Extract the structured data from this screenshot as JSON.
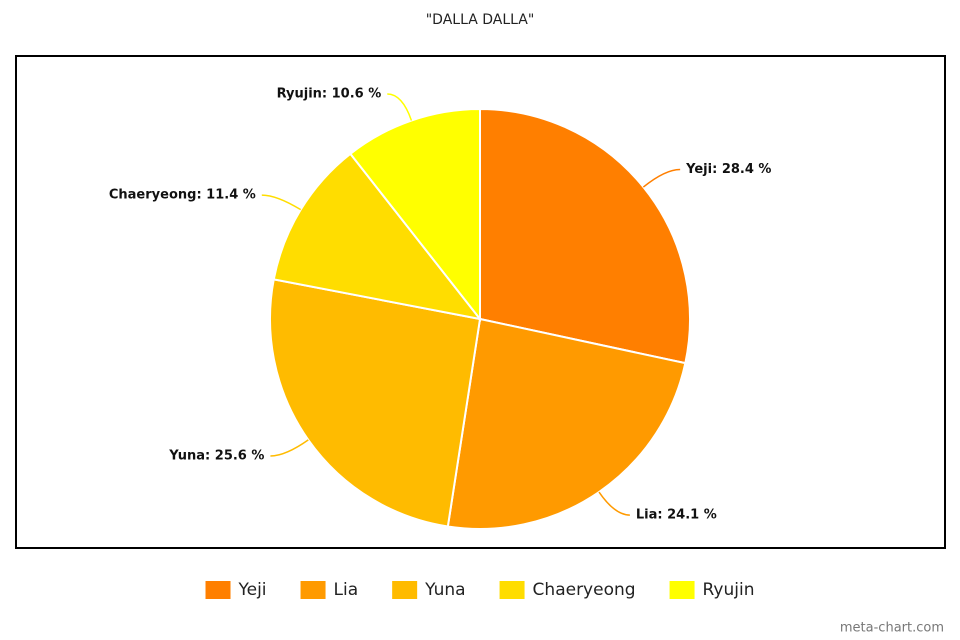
{
  "chart_data": {
    "type": "pie",
    "title": "\"DALLA DALLA\"",
    "categories": [
      "Yeji",
      "Lia",
      "Yuna",
      "Chaeryeong",
      "Ryujin"
    ],
    "values": [
      28.4,
      24.1,
      25.6,
      11.4,
      10.6
    ],
    "value_labels": [
      "Yeji: 28.4 %",
      "Lia: 24.1 %",
      "Yuna: 25.6 %",
      "Chaeryeong: 11.4 %",
      "Ryujin: 10.6 %"
    ],
    "colors": [
      "#ff7f00",
      "#ff9a00",
      "#ffbb00",
      "#ffdd00",
      "#ffff00"
    ],
    "legend": "bottom"
  },
  "watermark": "meta-chart.com"
}
